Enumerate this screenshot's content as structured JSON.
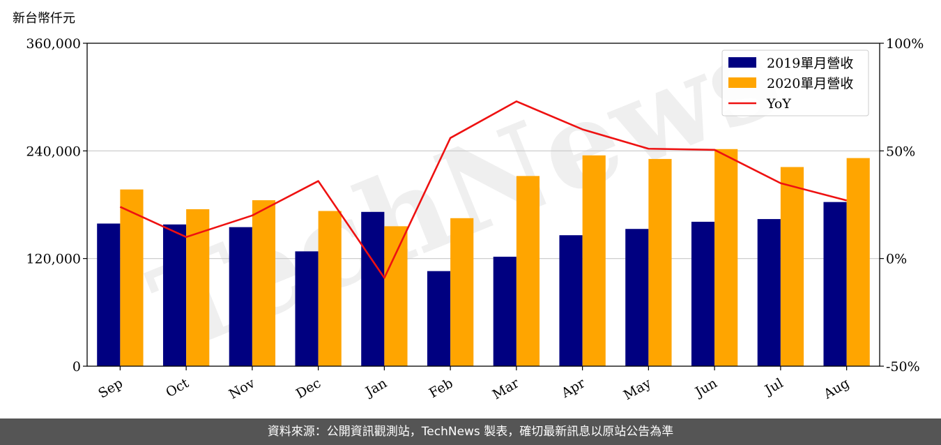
{
  "unit_label": "新台幣仟元",
  "watermark": "TechNews",
  "footer": "資料來源：公開資訊觀測站，TechNews 製表，確切最新訊息以原站公告為準",
  "colors": {
    "s2019": "#000080",
    "s2020": "#FFA500",
    "yoy": "#EE1111"
  },
  "chart_data": {
    "type": "bar",
    "categories": [
      "Sep",
      "Oct",
      "Nov",
      "Dec",
      "Jan",
      "Feb",
      "Mar",
      "Apr",
      "May",
      "Jun",
      "Jul",
      "Aug"
    ],
    "series": [
      {
        "name": "2019單月營收",
        "values": [
          159000,
          158000,
          155000,
          128000,
          172000,
          106000,
          122000,
          146000,
          153000,
          161000,
          164000,
          183000
        ]
      },
      {
        "name": "2020單月營收",
        "values": [
          197000,
          175000,
          185000,
          173000,
          156000,
          165000,
          212000,
          235000,
          231000,
          242000,
          222000,
          232000
        ]
      }
    ],
    "line_series": {
      "name": "YoY",
      "axis": "right",
      "values": [
        24,
        10,
        20,
        36,
        -9,
        56,
        73,
        60,
        51,
        50.5,
        35,
        27
      ]
    },
    "ylim": [
      0,
      360000
    ],
    "yticks": [
      "0",
      "120,000",
      "240,000",
      "360,000"
    ],
    "ylim_right": [
      -50,
      100
    ],
    "yticks_right": [
      "-50%",
      "0%",
      "50%",
      "100%"
    ],
    "grid": "horizontal",
    "legend": "top-right"
  }
}
